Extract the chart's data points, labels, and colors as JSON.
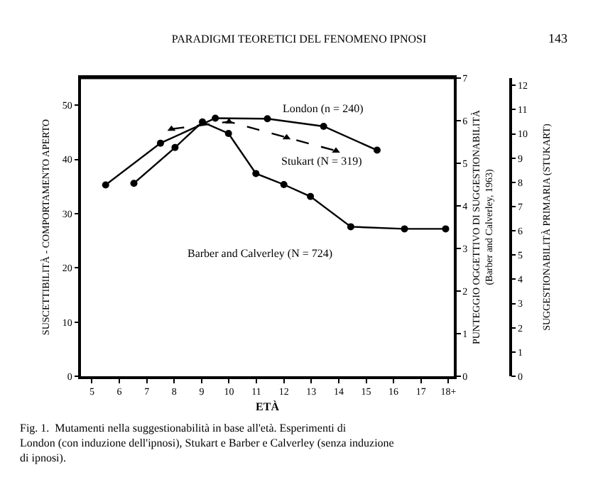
{
  "chart_data": {
    "type": "line",
    "title": "PARADIGMI TEORETICI DEL FENOMENO IPNOSI",
    "xlabel": "ETÀ",
    "ylabel": "SUSCETTIBILITÀ - COMPORTAMENTO APERTO",
    "y2label": "PUNTEGGIO OGGETTIVO DI SUGGESTIONABILITÀ\n(Barber and Calverley, 1963)",
    "y3label": "SUGGESTIONABILITÀ PRIMARIA (STUKART)",
    "annotations": [
      "143",
      "Fig. 1.  Mutamenti nella suggestionabilità in base all'età. Esperimenti di\nLondon (con induzione dell'ipnosi), Stukart e Barber e Calverley (senza induzione\ndi ipnosi)."
    ],
    "xlim": [
      4.6,
      18.2
    ],
    "xticks": [
      5,
      6,
      7,
      8,
      9,
      10,
      11,
      12,
      13,
      14,
      15,
      16,
      17,
      {
        "value": 18,
        "label": "18+"
      }
    ],
    "ylim": [
      0,
      55
    ],
    "yticks": [
      0,
      10,
      20,
      30,
      40,
      50
    ],
    "y2lim": [
      0,
      7
    ],
    "y2ticks": [
      0,
      1,
      2,
      3,
      4,
      5,
      6,
      7
    ],
    "y3lim": [
      0,
      12.3
    ],
    "y3ticks": [
      0,
      1,
      2,
      3,
      4,
      5,
      6,
      7,
      8,
      9,
      10,
      11,
      12
    ],
    "legend": false,
    "marker": "circle",
    "line_style": "solid",
    "series": [
      {
        "name": "London (n = 240)",
        "color": "#000000",
        "x": [
          5.5,
          7.5,
          9.5,
          11.4,
          13.45,
          15.4
        ],
        "values": [
          35.3,
          43,
          47.6,
          47.5,
          46.1,
          41.7
        ]
      },
      {
        "name": "Stukart (N = 319)",
        "color": "#000000",
        "axis": "y3",
        "marker": "triangle",
        "line_style": "dashed",
        "x": [
          7.9,
          10,
          12.1,
          13.9
        ],
        "values": [
          10.2,
          10.5,
          9.85,
          9.3
        ]
      },
      {
        "name": "Barber and Calverley (N = 724)",
        "color": "#000000",
        "axis": "y2",
        "x": [
          6.53,
          8.03,
          9.03,
          9.98,
          10.98,
          12.0,
          12.97,
          14.44,
          16.4,
          17.9
        ],
        "values": [
          4.53,
          5.37,
          5.97,
          5.7,
          4.76,
          4.5,
          4.22,
          3.51,
          3.46,
          3.46
        ]
      }
    ]
  }
}
